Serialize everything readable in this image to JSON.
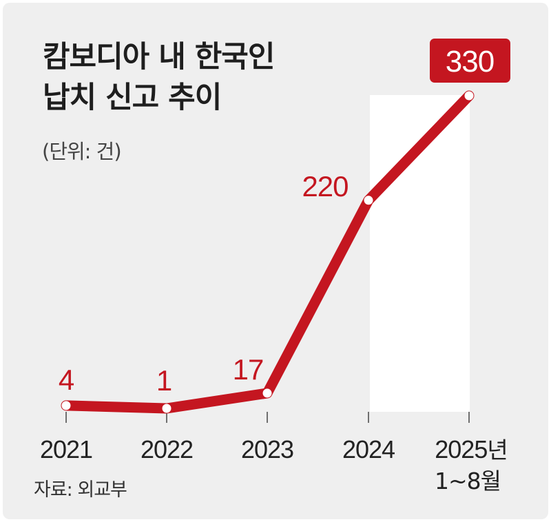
{
  "header": {
    "title_line1": "캄보디아 내 한국인",
    "title_line2": "납치 신고 추이",
    "unit": "(단위: 건)"
  },
  "footer": {
    "source": "자료: 외교부"
  },
  "colors": {
    "accent": "#c41620",
    "background": "#efefef",
    "highlight": "#ffffff"
  },
  "chart_data": {
    "type": "line",
    "title": "캄보디아 내 한국인 납치 신고 추이",
    "unit": "(단위: 건)",
    "categories": [
      "2021",
      "2022",
      "2023",
      "2024",
      "2025년 1~8월"
    ],
    "x_tick_labels": [
      [
        "2021"
      ],
      [
        "2022"
      ],
      [
        "2023"
      ],
      [
        "2024"
      ],
      [
        "2025년",
        "1~8월"
      ]
    ],
    "values": [
      4,
      1,
      17,
      220,
      330
    ],
    "data_labels": [
      "4",
      "1",
      "17",
      "220",
      "330"
    ],
    "highlight_index": 4,
    "ylim": [
      0,
      330
    ],
    "grid": false,
    "legend": "none"
  }
}
